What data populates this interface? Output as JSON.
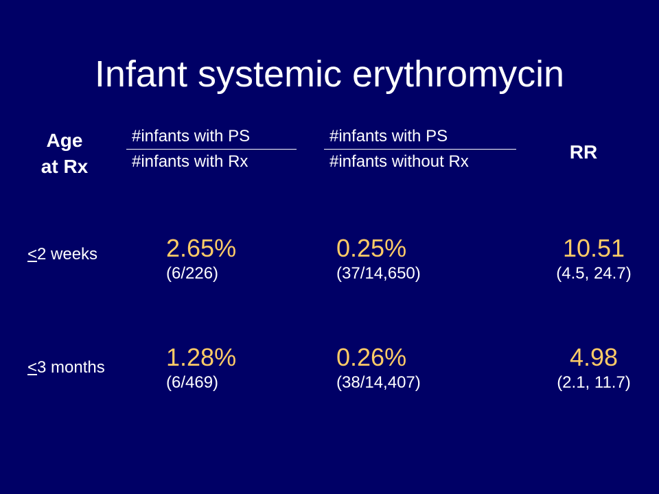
{
  "title": "Infant systemic erythromycin",
  "headers": {
    "age_line1": "Age",
    "age_line2": "at Rx",
    "col1_numerator": "#infants with PS",
    "col1_denominator": "#infants with Rx",
    "col2_numerator": "#infants with PS",
    "col2_denominator": "#infants without Rx",
    "rr": "RR"
  },
  "rows": [
    {
      "label_symbol": "<",
      "label_text": "2 weeks",
      "with_rx_pct": "2.65%",
      "with_rx_frac": "(6/226)",
      "without_rx_pct": "0.25%",
      "without_rx_frac": "(37/14,650)",
      "rr": "10.51",
      "ci": "(4.5, 24.7)"
    },
    {
      "label_symbol": "<",
      "label_text": "3 months",
      "with_rx_pct": "1.28%",
      "with_rx_frac": "(6/469)",
      "without_rx_pct": "0.26%",
      "without_rx_frac": "(38/14,407)",
      "rr": "4.98",
      "ci": "(2.1, 11.7)"
    }
  ],
  "colors": {
    "background": "#000066",
    "text": "#ffffff",
    "highlight": "#ffcc66"
  }
}
